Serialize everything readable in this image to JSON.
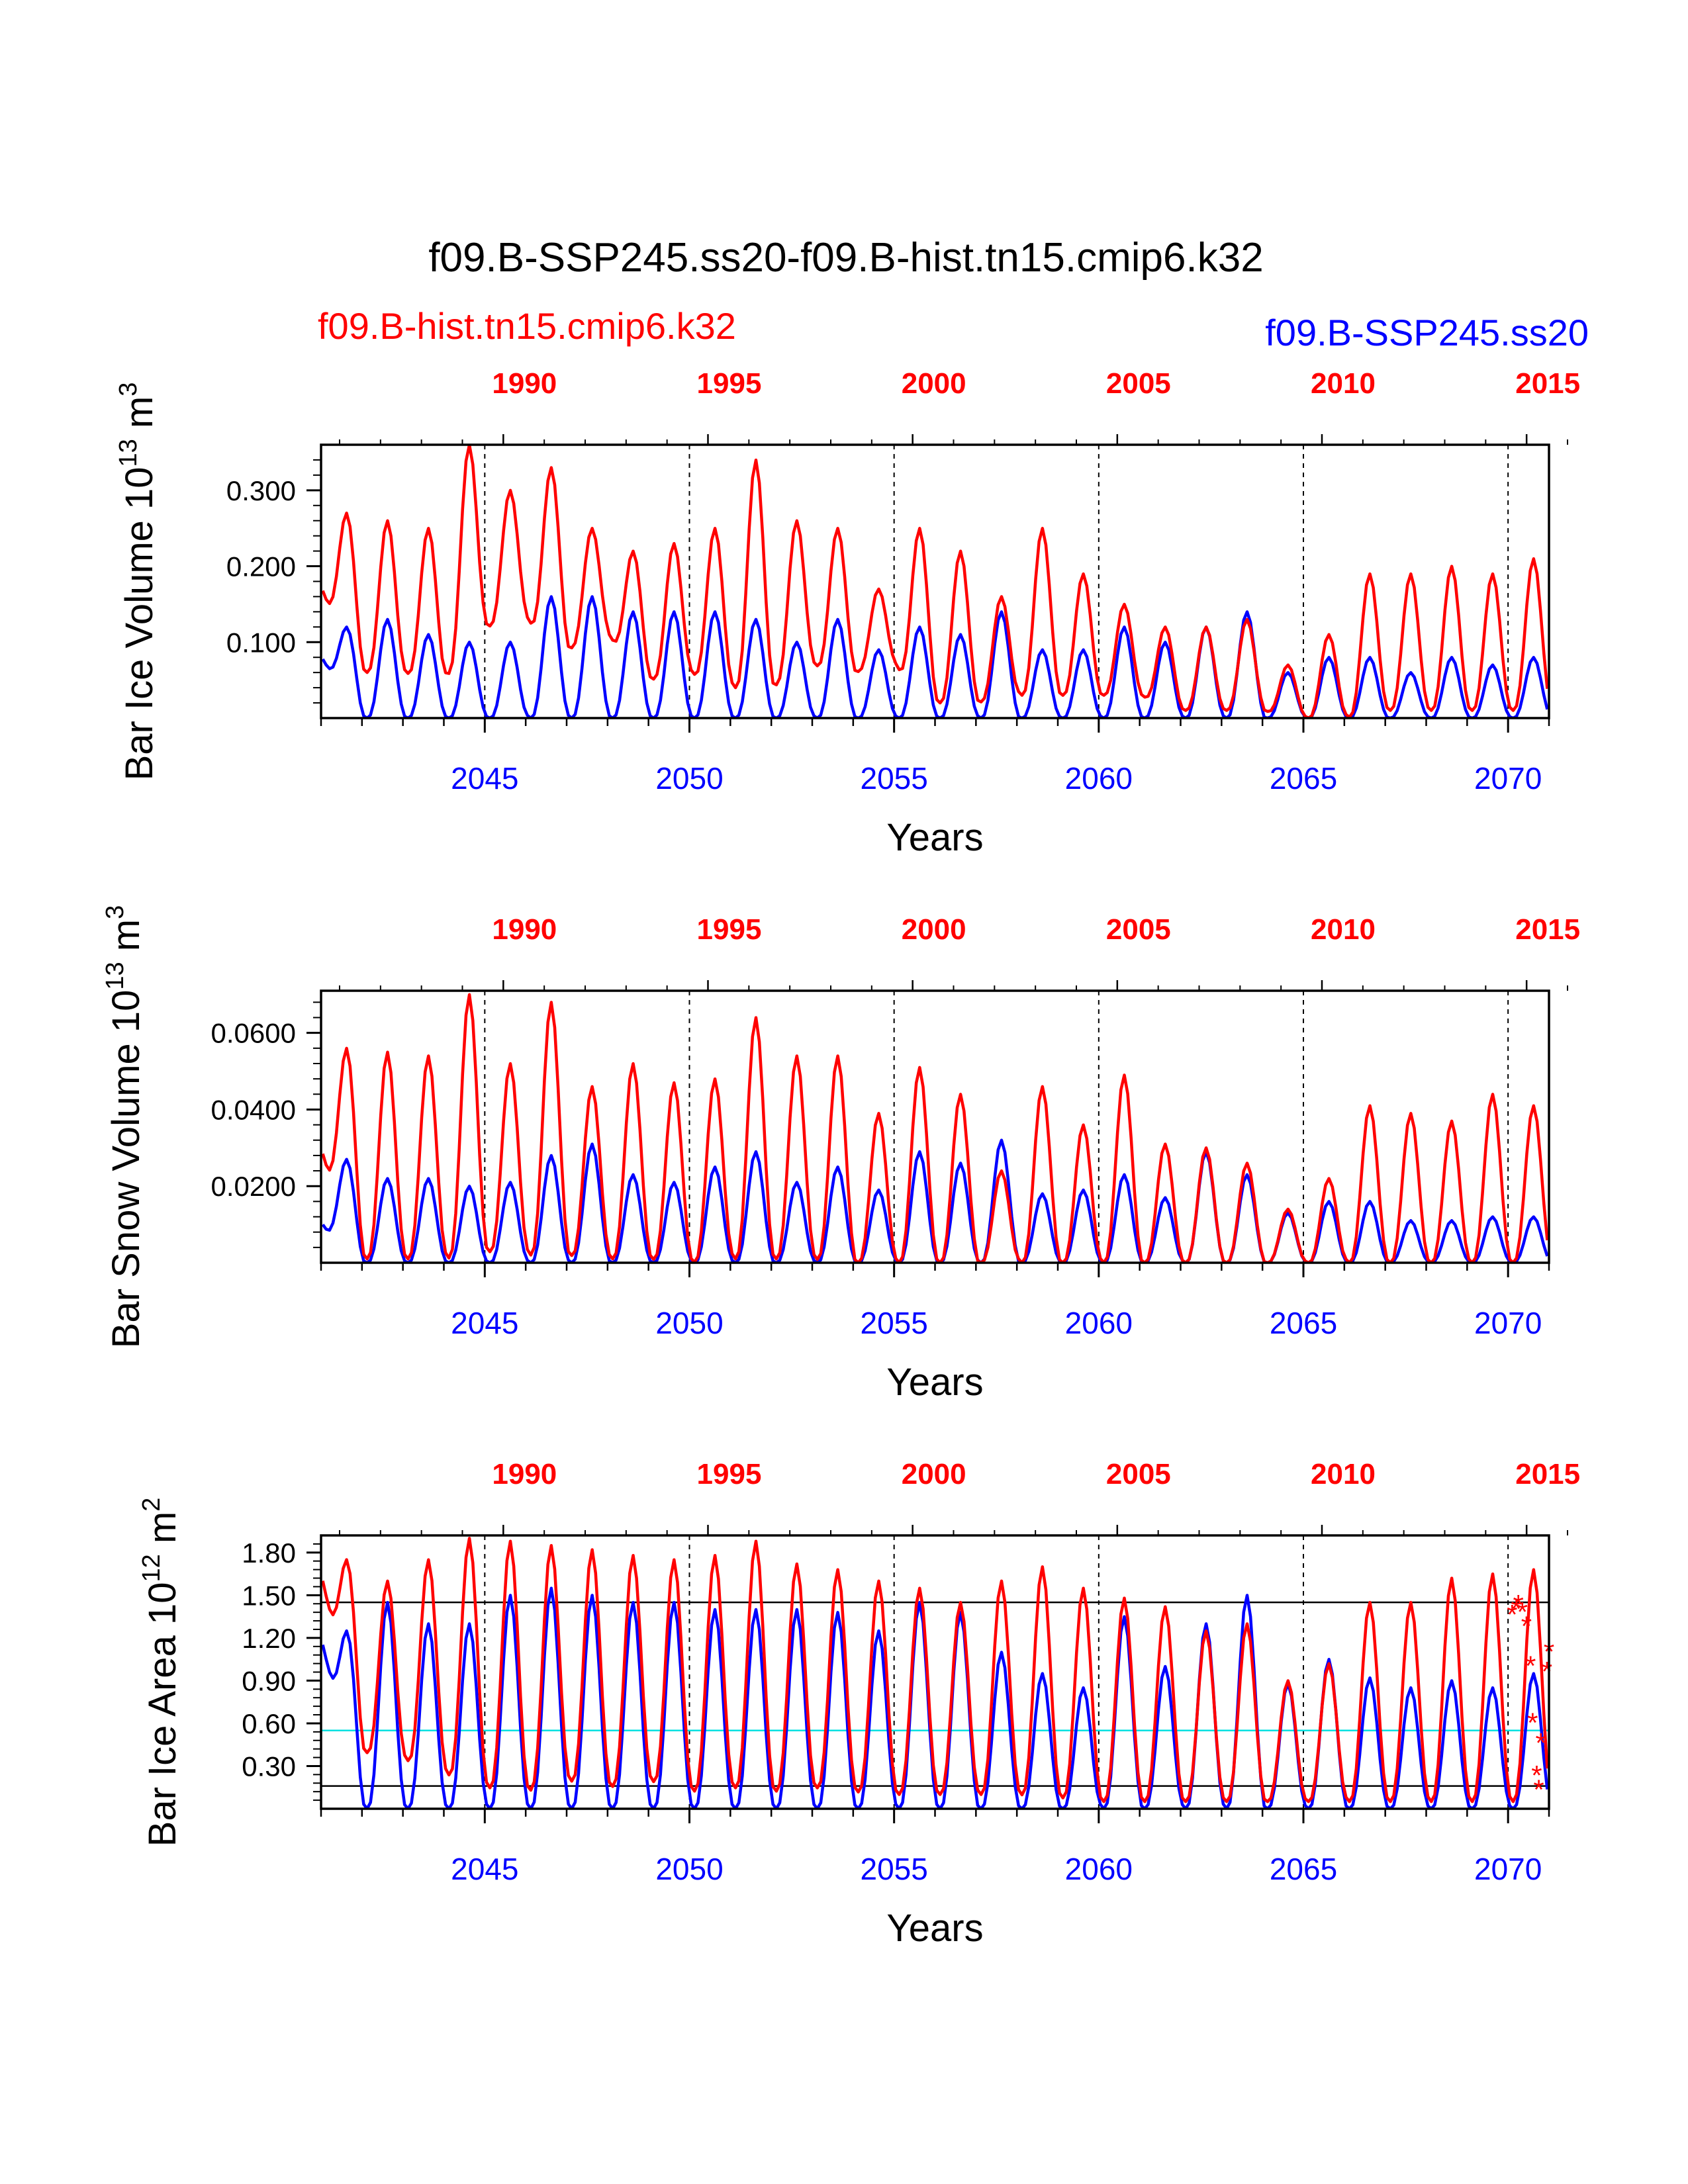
{
  "title": "f09.B-SSP245.ss20-f09.B-hist.tn15.cmip6.k32",
  "legend": {
    "red": "f09.B-hist.tn15.cmip6.k32",
    "blue": "f09.B-SSP245.ss20"
  },
  "colors": {
    "red": "#ff0000",
    "blue": "#0000ff",
    "cyan": "#00e0e0",
    "axis": "#000000"
  },
  "chart_data": [
    {
      "type": "line",
      "ylabel_main": "Bar Ice Volume 10",
      "ylabel_exp": "13",
      "ylabel_unit": " m",
      "ylabel_unit_exp": "3",
      "xlabel": "Years",
      "xlim": [
        2041,
        2071
      ],
      "ylim": [
        0,
        0.36
      ],
      "yticks": [
        0.1,
        0.2,
        0.3
      ],
      "ytick_labels": [
        "0.100",
        "0.200",
        "0.300"
      ],
      "bottom_ticks": [
        2045,
        2050,
        2055,
        2060,
        2065,
        2070
      ],
      "bottom_tick_labels": [
        "2045",
        "2050",
        "2055",
        "2060",
        "2065",
        "2070"
      ],
      "top_tick_labels": [
        "1990",
        "1995",
        "2000",
        "2005",
        "2010",
        "2015"
      ],
      "top_tick_positions": [
        2045,
        2050,
        2055,
        2060,
        2065,
        2070
      ],
      "series": [
        {
          "name": "f09.B-hist.tn15.cmip6.k32",
          "color": "#ff0000",
          "x_start": 2041,
          "step": 1,
          "min": [
            0.17,
            0.06,
            0.06,
            0.05,
            0.12,
            0.13,
            0.09,
            0.11,
            0.05,
            0.06,
            0.04,
            0.04,
            0.07,
            0.06,
            0.07,
            0.02,
            0.02,
            0.03,
            0.03,
            0.03,
            0.03,
            0.01,
            0.01,
            0.01,
            0.0,
            0.0,
            0.01,
            0.01,
            0.01,
            0.01
          ],
          "max": [
            0.27,
            0.26,
            0.25,
            0.36,
            0.3,
            0.33,
            0.25,
            0.22,
            0.23,
            0.25,
            0.34,
            0.26,
            0.25,
            0.17,
            0.25,
            0.22,
            0.16,
            0.25,
            0.19,
            0.15,
            0.12,
            0.12,
            0.13,
            0.07,
            0.11,
            0.19,
            0.19,
            0.2,
            0.19,
            0.21
          ]
        },
        {
          "name": "f09.B-SSP245.ss20",
          "color": "#0000ff",
          "x_start": 2041,
          "step": 1,
          "min": [
            0.08,
            0.0,
            0.0,
            0.0,
            0.0,
            0.0,
            0.0,
            0.0,
            0.0,
            0.0,
            0.0,
            0.0,
            0.0,
            0.0,
            0.0,
            0.0,
            0.0,
            0.0,
            0.0,
            0.0,
            0.0,
            0.0,
            0.0,
            0.0,
            0.0,
            0.0,
            0.0,
            0.0,
            0.0,
            0.0
          ],
          "max": [
            0.12,
            0.13,
            0.11,
            0.1,
            0.1,
            0.16,
            0.16,
            0.14,
            0.14,
            0.14,
            0.13,
            0.1,
            0.13,
            0.09,
            0.12,
            0.11,
            0.14,
            0.09,
            0.09,
            0.12,
            0.1,
            0.12,
            0.14,
            0.06,
            0.08,
            0.08,
            0.06,
            0.08,
            0.07,
            0.08
          ]
        }
      ]
    },
    {
      "type": "line",
      "ylabel_main": "Bar Snow Volume 10",
      "ylabel_exp": "13",
      "ylabel_unit": " m",
      "ylabel_unit_exp": "3",
      "xlabel": "Years",
      "xlim": [
        2041,
        2071
      ],
      "ylim": [
        0,
        0.071
      ],
      "yticks": [
        0.02,
        0.04,
        0.06
      ],
      "ytick_labels": [
        "0.0200",
        "0.0400",
        "0.0600"
      ],
      "bottom_ticks": [
        2045,
        2050,
        2055,
        2060,
        2065,
        2070
      ],
      "bottom_tick_labels": [
        "2045",
        "2050",
        "2055",
        "2060",
        "2065",
        "2070"
      ],
      "top_tick_labels": [
        "1990",
        "1995",
        "2000",
        "2005",
        "2010",
        "2015"
      ],
      "top_tick_positions": [
        2045,
        2050,
        2055,
        2060,
        2065,
        2070
      ],
      "series": [
        {
          "name": "f09.B-hist.tn15.cmip6.k32",
          "color": "#ff0000",
          "x_start": 2041,
          "step": 1,
          "min": [
            0.029,
            0.001,
            0.001,
            0.001,
            0.003,
            0.002,
            0.002,
            0.001,
            0.001,
            0.0,
            0.001,
            0.001,
            0.001,
            0.0,
            0.0,
            0.0,
            0.0,
            0.0,
            0.0,
            0.0,
            0.0,
            0.0,
            0.0,
            0.0,
            0.0,
            0.0,
            0.0,
            0.0,
            0.0,
            0.0
          ],
          "max": [
            0.056,
            0.055,
            0.054,
            0.07,
            0.052,
            0.068,
            0.046,
            0.052,
            0.047,
            0.048,
            0.064,
            0.054,
            0.054,
            0.039,
            0.051,
            0.044,
            0.024,
            0.046,
            0.036,
            0.049,
            0.031,
            0.03,
            0.026,
            0.014,
            0.022,
            0.041,
            0.039,
            0.037,
            0.044,
            0.041
          ]
        },
        {
          "name": "f09.B-SSP245.ss20",
          "color": "#0000ff",
          "x_start": 2041,
          "step": 1,
          "min": [
            0.01,
            0.0,
            0.0,
            0.0,
            0.0,
            0.0,
            0.0,
            0.0,
            0.0,
            0.0,
            0.0,
            0.0,
            0.0,
            0.0,
            0.0,
            0.0,
            0.0,
            0.0,
            0.0,
            0.0,
            0.0,
            0.0,
            0.0,
            0.0,
            0.0,
            0.0,
            0.0,
            0.0,
            0.0,
            0.0
          ],
          "max": [
            0.027,
            0.022,
            0.022,
            0.02,
            0.021,
            0.028,
            0.031,
            0.023,
            0.021,
            0.025,
            0.029,
            0.021,
            0.025,
            0.019,
            0.029,
            0.026,
            0.032,
            0.018,
            0.019,
            0.023,
            0.017,
            0.029,
            0.023,
            0.013,
            0.016,
            0.016,
            0.011,
            0.011,
            0.012,
            0.012
          ]
        }
      ]
    },
    {
      "type": "line",
      "ylabel_main": "Bar Ice Area 10",
      "ylabel_exp": "12",
      "ylabel_unit": " m",
      "ylabel_unit_exp": "2",
      "xlabel": "Years",
      "xlim": [
        2041,
        2071
      ],
      "ylim": [
        0,
        1.92
      ],
      "yticks": [
        0.3,
        0.6,
        0.9,
        1.2,
        1.5,
        1.8
      ],
      "ytick_labels": [
        "0.30",
        "0.60",
        "0.90",
        "1.20",
        "1.50",
        "1.80"
      ],
      "bottom_ticks": [
        2045,
        2050,
        2055,
        2060,
        2065,
        2070
      ],
      "bottom_tick_labels": [
        "2045",
        "2050",
        "2055",
        "2060",
        "2065",
        "2070"
      ],
      "top_tick_labels": [
        "1990",
        "1995",
        "2000",
        "2005",
        "2010",
        "2015"
      ],
      "top_tick_positions": [
        2045,
        2050,
        2055,
        2060,
        2065,
        2070
      ],
      "reference_lines": [
        {
          "y": 1.45,
          "color": "#000000"
        },
        {
          "y": 0.55,
          "color": "#00e0e0"
        },
        {
          "y": 0.16,
          "color": "#000000"
        }
      ],
      "series": [
        {
          "name": "f09.B-hist.tn15.cmip6.k32",
          "color": "#ff0000",
          "x_start": 2041,
          "step": 1,
          "min": [
            1.65,
            0.4,
            0.35,
            0.25,
            0.15,
            0.12,
            0.2,
            0.15,
            0.2,
            0.12,
            0.15,
            0.12,
            0.15,
            0.12,
            0.1,
            0.1,
            0.1,
            0.1,
            0.08,
            0.05,
            0.05,
            0.05,
            0.05,
            0.05,
            0.05,
            0.05,
            0.05,
            0.05,
            0.05,
            0.05
          ],
          "max": [
            1.75,
            1.6,
            1.75,
            1.9,
            1.88,
            1.85,
            1.82,
            1.78,
            1.75,
            1.78,
            1.88,
            1.72,
            1.68,
            1.6,
            1.55,
            1.45,
            1.6,
            1.7,
            1.55,
            1.48,
            1.42,
            1.25,
            1.3,
            0.9,
            1.02,
            1.45,
            1.45,
            1.62,
            1.65,
            1.68
          ]
        },
        {
          "name": "f09.B-SSP245.ss20",
          "color": "#0000ff",
          "x_start": 2041,
          "step": 1,
          "min": [
            1.2,
            0.0,
            0.0,
            0.0,
            0.0,
            0.0,
            0.0,
            0.0,
            0.0,
            0.0,
            0.0,
            0.0,
            0.0,
            0.0,
            0.0,
            0.0,
            0.0,
            0.0,
            0.0,
            0.0,
            0.0,
            0.0,
            0.0,
            0.0,
            0.0,
            0.0,
            0.0,
            0.0,
            0.0,
            0.0
          ],
          "max": [
            1.25,
            1.45,
            1.3,
            1.3,
            1.5,
            1.55,
            1.5,
            1.45,
            1.45,
            1.4,
            1.4,
            1.4,
            1.38,
            1.25,
            1.45,
            1.38,
            1.1,
            0.95,
            0.85,
            1.35,
            1.0,
            1.3,
            1.5,
            0.88,
            1.05,
            0.92,
            0.85,
            0.9,
            0.85,
            0.95
          ]
        }
      ],
      "markers": {
        "color": "#ff0000",
        "symbol": "*",
        "points": [
          [
            2070.1,
            1.38
          ],
          [
            2070.2,
            1.42
          ],
          [
            2070.25,
            1.45
          ],
          [
            2070.35,
            1.4
          ],
          [
            2070.45,
            1.3
          ],
          [
            2070.55,
            1.02
          ],
          [
            2070.6,
            0.62
          ],
          [
            2070.7,
            0.25
          ],
          [
            2070.75,
            0.15
          ],
          [
            2070.8,
            0.48
          ],
          [
            2070.95,
            0.98
          ],
          [
            2071.0,
            1.12
          ]
        ]
      }
    }
  ]
}
